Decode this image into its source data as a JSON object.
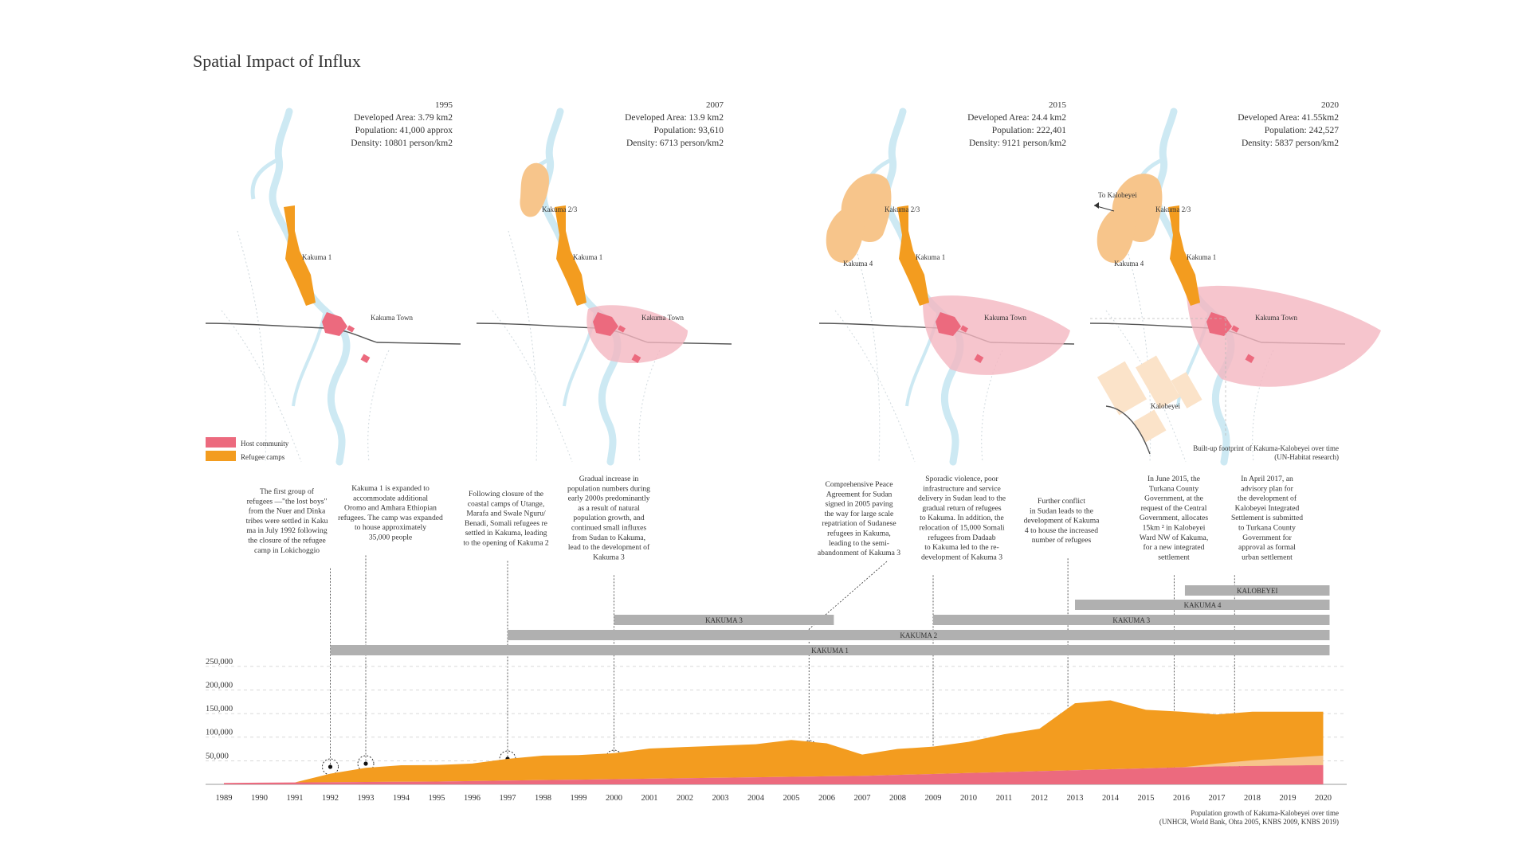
{
  "title": "Spatial Impact of Influx",
  "colors": {
    "host": "#ec6a7e",
    "refugee": "#f39c1f",
    "refugee_light": "#f7c58b",
    "host_light": "#f4b6c0",
    "water": "#cde9f3",
    "bar": "#b0b0b0",
    "road": "#555555"
  },
  "maps": [
    {
      "year": "1995",
      "area": "Developed Area: 3.79 km2",
      "population": "Population: 41,000 approx",
      "density": "Density: 10801 person/km2",
      "labels": [
        "Kakuma 1",
        "Kakuma Town"
      ]
    },
    {
      "year": "2007",
      "area": "Developed Area: 13.9 km2",
      "population": "Population: 93,610",
      "density": "Density: 6713 person/km2",
      "labels": [
        "Kakuma 2/3",
        "Kakuma 1",
        "Kakuma Town"
      ]
    },
    {
      "year": "2015",
      "area": "Developed Area: 24.4 km2",
      "population": "Population: 222,401",
      "density": "Density: 9121 person/km2",
      "labels": [
        "Kakuma 2/3",
        "Kakuma 1",
        "Kakuma 4",
        "Kakuma Town"
      ]
    },
    {
      "year": "2020",
      "area": "Developed Area: 41.55km2",
      "population": "Population: 242,527",
      "density": "Density: 5837 person/km2",
      "labels": [
        "To Kalobeyei",
        "Kakuma 2/3",
        "Kakuma 1",
        "Kakuma 4",
        "Kakuma Town",
        "Kalobeyei"
      ]
    }
  ],
  "legend": [
    {
      "label": "Host community",
      "color": "#ec6a7e"
    },
    {
      "label": "Refugee camps",
      "color": "#f39c1f"
    }
  ],
  "map_caption": [
    "Built-up footprint of Kakuma-Kalobeyei over time",
    "(UN-Habitat research)"
  ],
  "annotations": [
    {
      "year": 1992,
      "lines": [
        "The first group of",
        "refugees —\"the lost boys\"",
        "from the Nuer and Dinka",
        "tribes were settled in Kaku",
        "ma in July 1992 following",
        "the closure of the refugee",
        "camp in Lokichoggio"
      ]
    },
    {
      "year": 1993,
      "lines": [
        "Kakuma 1 is expanded to",
        "accommodate additional",
        "Oromo and Amhara Ethiopian",
        "refugees. The camp was expanded",
        "to house approximately",
        "35,000 people"
      ]
    },
    {
      "year": 1997,
      "lines": [
        "Following closure of the",
        "coastal camps of Utange,",
        "Marafa and Swale Nguru/",
        "Benadi, Somali refugees re",
        "settled in Kakuma, leading",
        "to the opening of Kakuma 2"
      ]
    },
    {
      "year": 2000,
      "lines": [
        "Gradual increase in",
        "population numbers during",
        "early 2000s predominantly",
        "as a result of natural",
        "population growth, and",
        "continued small influxes",
        "from Sudan to Kakuma,",
        "lead to the development of",
        "Kakuma 3"
      ]
    },
    {
      "year": 2005.5,
      "lines": [
        "Comprehensive Peace",
        "Agreement for Sudan",
        "signed in 2005 paving",
        "the way for large scale",
        "repatriation of Sudanese",
        "refugees in Kakuma,",
        "leading to the semi-",
        "abandonment of Kakuma 3"
      ]
    },
    {
      "year": 2009,
      "lines": [
        "Sporadic violence, poor",
        "infrastructure and service",
        "delivery in Sudan lead to the",
        "gradual return of refugees",
        "to Kakuma. In addition, the",
        "relocation of 15,000 Somali",
        "refugees from Dadaab",
        "to Kakuma led to the re-",
        "development of Kakuma 3"
      ]
    },
    {
      "year": 2012.8,
      "lines": [
        "Further conflict",
        "in Sudan leads to the",
        "development of Kakuma",
        "4 to house the increased",
        "number of refugees"
      ]
    },
    {
      "year": 2015.8,
      "lines": [
        "In June 2015, the",
        "Turkana County",
        "Government, at the",
        "request of the Central",
        "Government, allocates",
        "15km ² in Kalobeyei",
        "Ward NW of Kakuma,",
        "for a new integrated",
        "settlement"
      ]
    },
    {
      "year": 2017.5,
      "lines": [
        "In April 2017, an",
        "advisory plan for",
        "the development of",
        "Kalobeyei Integrated",
        "Settlement is submitted",
        "to Turkana County",
        "Government for",
        "approval as formal",
        "urban settlement"
      ]
    }
  ],
  "camp_bars": [
    {
      "name": "KALOBEYEI",
      "start": 2016.1,
      "end": 2020
    },
    {
      "name": "KAKUMA 4",
      "start": 2013,
      "end": 2020
    },
    {
      "name": "KAKUMA 3",
      "start": 2000,
      "end": 2020,
      "gap": [
        2006.2,
        2009
      ]
    },
    {
      "name": "KAKUMA 2",
      "start": 1997,
      "end": 2020
    },
    {
      "name": "KAKUMA 1",
      "start": 1992,
      "end": 2020
    }
  ],
  "chart_data": {
    "type": "area",
    "x": [
      1989,
      1990,
      1991,
      1992,
      1993,
      1994,
      1995,
      1996,
      1997,
      1998,
      1999,
      2000,
      2001,
      2002,
      2003,
      2004,
      2005,
      2006,
      2007,
      2008,
      2009,
      2010,
      2011,
      2012,
      2013,
      2014,
      2015,
      2016,
      2017,
      2018,
      2019,
      2020
    ],
    "series": [
      {
        "role": "host",
        "values": [
          3000,
          3500,
          4000,
          4500,
          5000,
          5500,
          6000,
          7000,
          8000,
          9000,
          10000,
          11000,
          12000,
          13000,
          14000,
          15000,
          16000,
          17000,
          18000,
          20000,
          22000,
          24000,
          26000,
          28000,
          30000,
          32000,
          34000,
          36000,
          38000,
          39000,
          40000,
          41000
        ]
      },
      {
        "role": "refugee",
        "values": [
          0,
          0,
          0,
          18000,
          30000,
          35000,
          35000,
          37000,
          46000,
          52000,
          52000,
          55000,
          64000,
          66000,
          68000,
          70000,
          78000,
          70000,
          45000,
          55000,
          58000,
          66000,
          80000,
          90000,
          142000,
          146000,
          124000,
          118000,
          110000,
          115000,
          114000,
          113000
        ]
      },
      {
        "role": "kalobeyei",
        "values": [
          0,
          0,
          0,
          0,
          0,
          0,
          0,
          0,
          0,
          0,
          0,
          0,
          0,
          0,
          0,
          0,
          0,
          0,
          0,
          0,
          0,
          0,
          0,
          0,
          0,
          0,
          0,
          0,
          6000,
          12000,
          16000,
          20000
        ]
      }
    ],
    "y_ticks": [
      "50,000",
      "100,000",
      "150,000",
      "200,000",
      "250,000"
    ],
    "y_tick_values": [
      50000,
      100000,
      150000,
      200000,
      250000
    ],
    "ylim": [
      0,
      270000
    ],
    "x_ticks": [
      "1989",
      "1990",
      "1991",
      "1992",
      "1993",
      "1994",
      "1995",
      "1996",
      "1997",
      "1998",
      "1999",
      "2000",
      "2001",
      "2002",
      "2003",
      "2004",
      "2005",
      "2006",
      "2007",
      "2008",
      "2009",
      "2010",
      "2011",
      "2012",
      "2013",
      "2014",
      "2015",
      "2016",
      "2017",
      "2018",
      "2019",
      "2020"
    ],
    "caption": [
      "Population growth of Kakuma-Kalobeyei over time",
      "(UNHCR, World Bank, Ohta 2005, KNBS 2009, KNBS 2019)"
    ]
  }
}
